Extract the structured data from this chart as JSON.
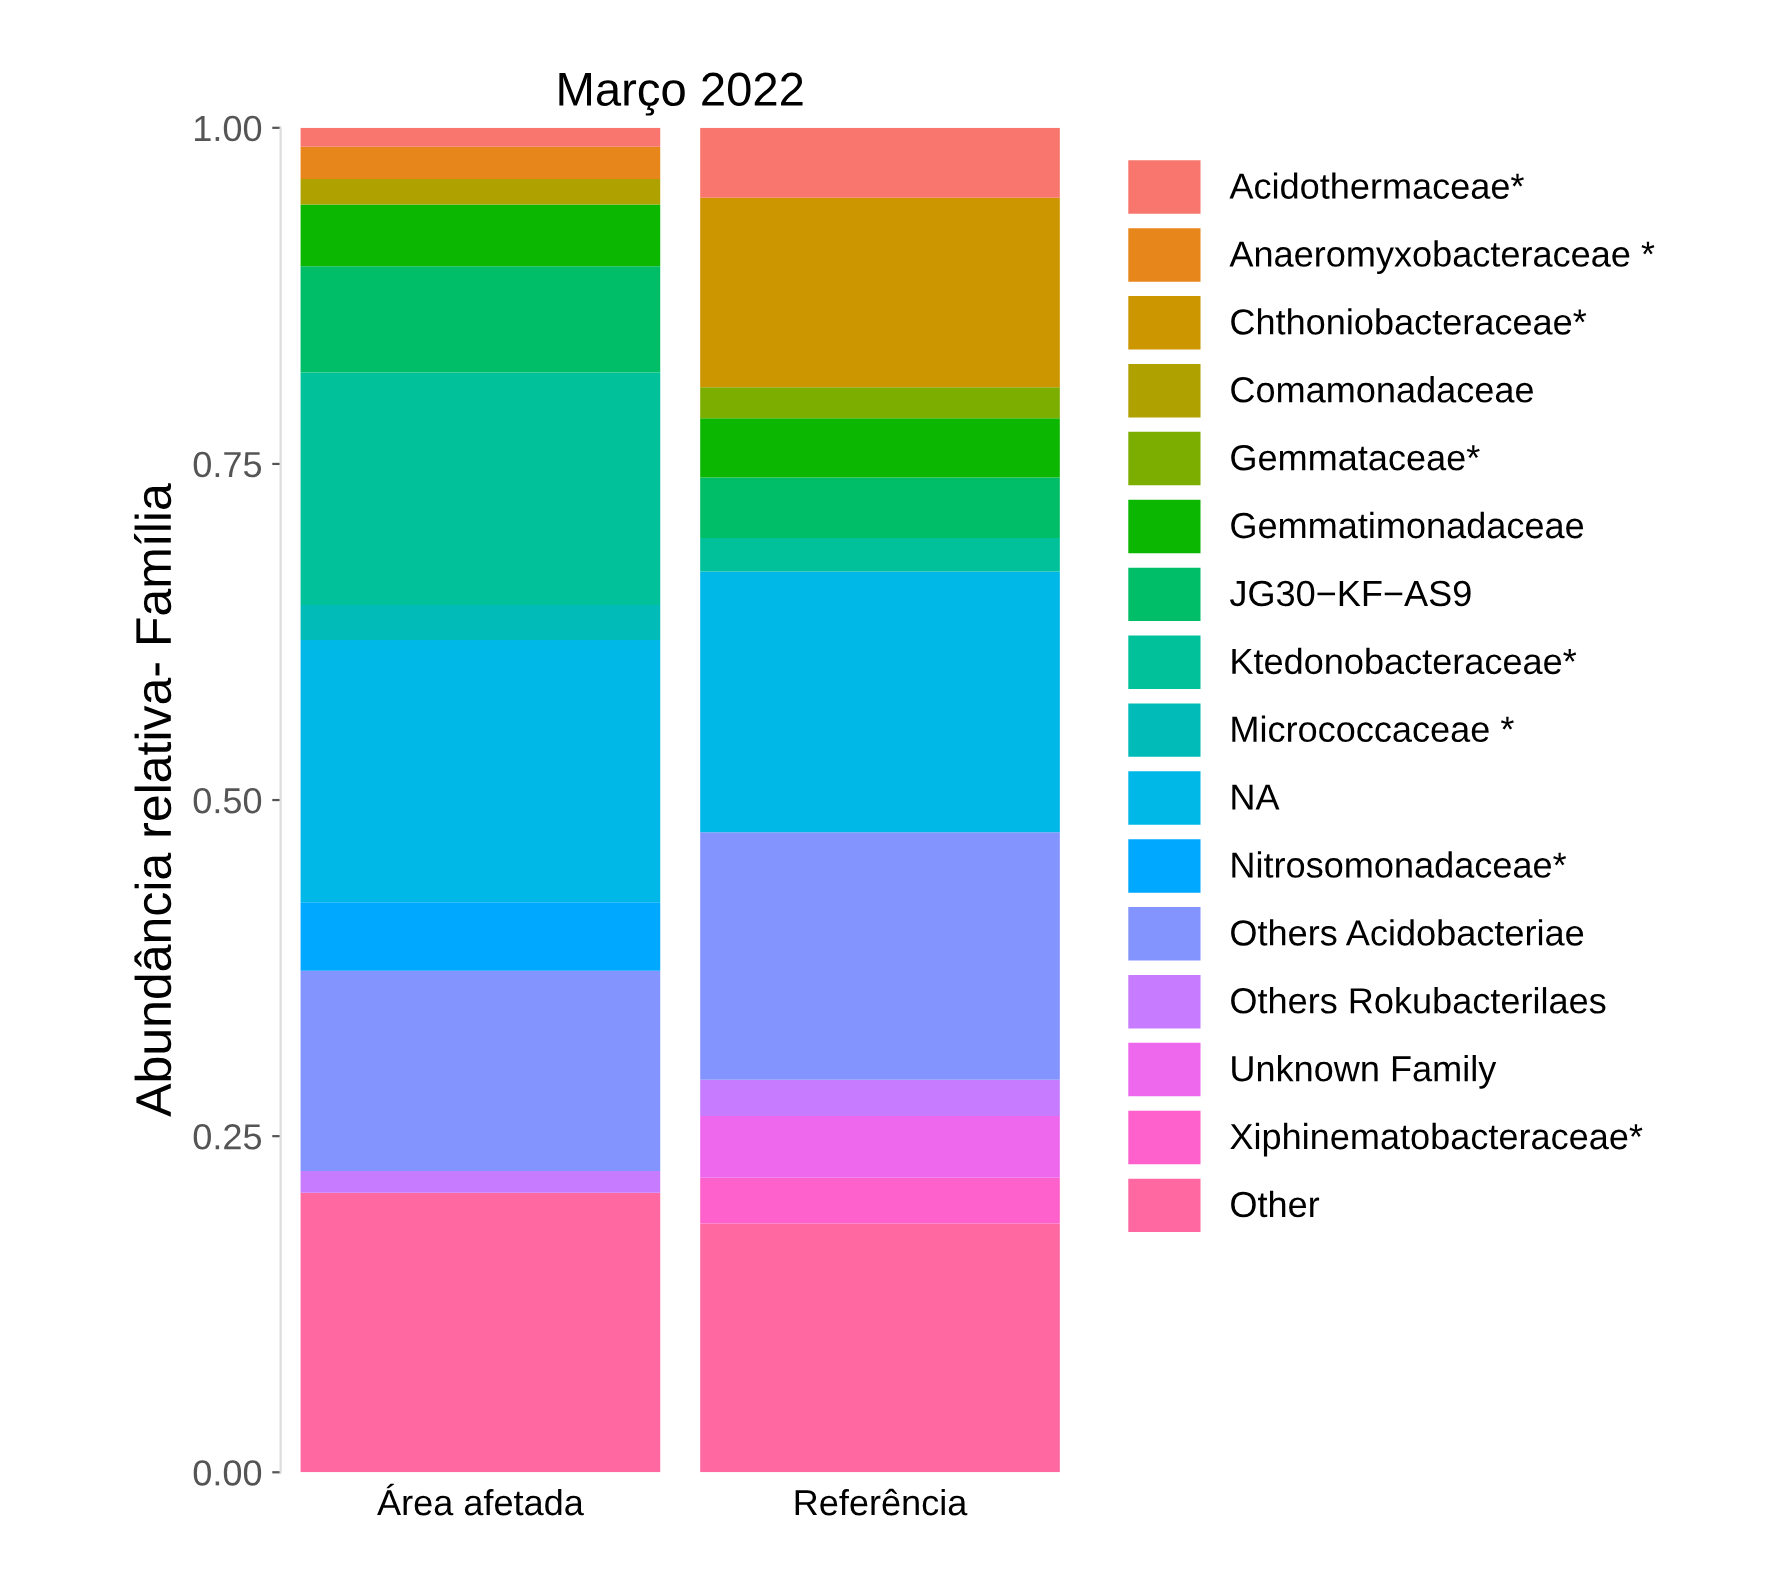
{
  "chart_data": {
    "type": "bar",
    "stacked": true,
    "title": "Março 2022",
    "ylabel": "Abundância relativa- Família",
    "categories": [
      "Área afetada",
      "Referência"
    ],
    "ylim": [
      0,
      1
    ],
    "yticks": [
      {
        "value": 0,
        "label": "0.00"
      },
      {
        "value": 0.25,
        "label": "0.25"
      },
      {
        "value": 0.5,
        "label": "0.50"
      },
      {
        "value": 0.75,
        "label": "0.75"
      },
      {
        "value": 1,
        "label": "1.00"
      }
    ],
    "grid": false,
    "legend": "right",
    "series": [
      {
        "name": "Other",
        "color": "#ff68a1",
        "values": [
          0.208,
          0.185
        ]
      },
      {
        "name": "Xiphinematobacteraceae*",
        "color": "#ff61cc",
        "values": [
          null,
          0.034
        ]
      },
      {
        "name": "Unknown Family",
        "color": "#ed68ed",
        "values": [
          null,
          0.046
        ]
      },
      {
        "name": "Others Rokubacterilaes",
        "color": "#c77cff",
        "values": [
          0.016,
          0.027
        ]
      },
      {
        "name": "Others Acidobacteriae",
        "color": "#8494ff",
        "values": [
          0.149,
          0.184
        ]
      },
      {
        "name": "Nitrosomonadaceae*",
        "color": "#00a9ff",
        "values": [
          0.051,
          null
        ]
      },
      {
        "name": "NA",
        "color": "#00b8e7",
        "values": [
          0.195,
          0.194
        ]
      },
      {
        "name": "Micrococcaceae *",
        "color": "#00bbb8",
        "values": [
          0.026,
          null
        ]
      },
      {
        "name": "Ktedonobacteraceae*",
        "color": "#00c19a",
        "values": [
          0.173,
          0.025
        ]
      },
      {
        "name": "JG30−KF−AS9",
        "color": "#00be67",
        "values": [
          0.079,
          0.045
        ]
      },
      {
        "name": "Gemmatimonadaceae",
        "color": "#0cb702",
        "values": [
          0.046,
          0.044
        ]
      },
      {
        "name": "Gemmataceae*",
        "color": "#7cae00",
        "values": [
          null,
          0.023
        ]
      },
      {
        "name": "Comamonadaceae",
        "color": "#afa100",
        "values": [
          0.019,
          null
        ]
      },
      {
        "name": "Chthoniobacteraceae*",
        "color": "#cc9600",
        "values": [
          null,
          0.141
        ]
      },
      {
        "name": "Anaeromyxobacteraceae *",
        "color": "#e7861b",
        "values": [
          0.024,
          null
        ]
      },
      {
        "name": "Acidothermaceae*",
        "color": "#f8766d",
        "values": [
          0.014,
          0.052
        ]
      }
    ]
  }
}
